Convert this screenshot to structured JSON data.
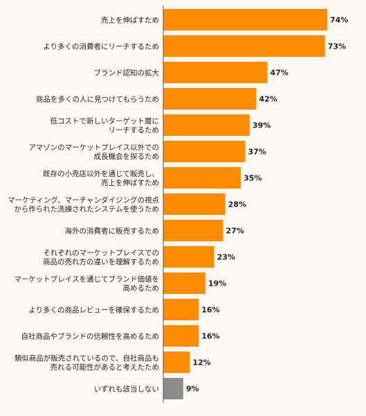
{
  "chart_data": {
    "type": "bar",
    "orientation": "horizontal",
    "categories": [
      [
        "売上を伸ばすため"
      ],
      [
        "より多くの消費者にリーチするため"
      ],
      [
        "ブランド認知の拡大"
      ],
      [
        "商品を多くの人に見つけてもらうため"
      ],
      [
        "低コストで新しいターゲット層に",
        "リーチするため"
      ],
      [
        "アマゾンのマーケットプレイス以外での",
        "成長機会を探るため"
      ],
      [
        "既存の小売店以外を通じて販売し、",
        "売上を伸ばすため"
      ],
      [
        "マーケティング、マーチャンダイジングの視点",
        "から作られた洗練されたシステムを使うため"
      ],
      [
        "海外の消費者に販売するため"
      ],
      [
        "それぞれのマーケットプレイスでの",
        "商品の売れ方の違いを理解するため"
      ],
      [
        "マーケットプレイスを通じてブランド価値を",
        "高めるため"
      ],
      [
        "より多くの商品レビューを確保するため"
      ],
      [
        "自社商品やブランドの信頼性を高めるため"
      ],
      [
        "類似商品が販売されているので、自社商品も",
        "売れる可能性があると考えたため"
      ],
      [
        "いずれも該当しない"
      ]
    ],
    "values": [
      74,
      73,
      47,
      42,
      39,
      37,
      35,
      28,
      27,
      23,
      19,
      16,
      16,
      12,
      9
    ],
    "value_labels": [
      "74%",
      "73%",
      "47%",
      "42%",
      "39%",
      "37%",
      "35%",
      "28%",
      "27%",
      "23%",
      "19%",
      "16%",
      "16%",
      "12%",
      "9%"
    ],
    "xlim": [
      0,
      80
    ],
    "colors": {
      "main": "#ff8c00",
      "none": "#8c8c8c",
      "axis": "#555555"
    },
    "grid": false
  }
}
